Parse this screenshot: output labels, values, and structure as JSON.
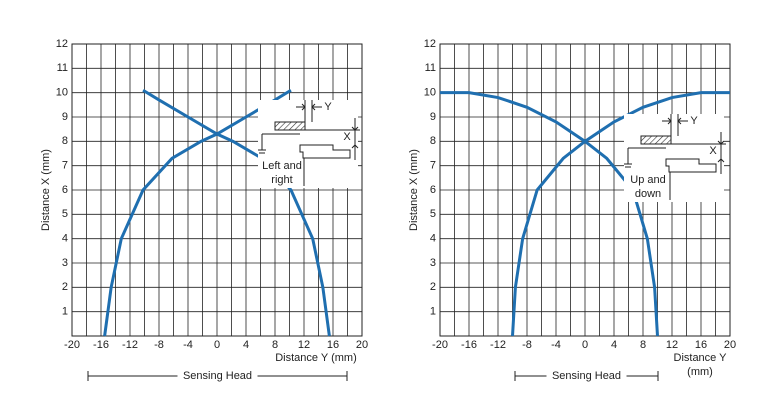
{
  "chart_data": [
    {
      "type": "line",
      "ylabel": "Distance X (mm)",
      "xlabel": [
        "Distance Y (mm)"
      ],
      "xlim": [
        -20,
        20
      ],
      "xticks": [
        -20,
        -16,
        -12,
        -8,
        -4,
        0,
        4,
        8,
        12,
        16,
        20
      ],
      "xgrid": [
        -18,
        -14,
        -10,
        -6,
        -2,
        2,
        6,
        10,
        14,
        18
      ],
      "ylim": [
        0,
        12
      ],
      "yticks": [
        1,
        2,
        3,
        4,
        5,
        6,
        7,
        8,
        9,
        10,
        11,
        12
      ],
      "grid": true,
      "series": [
        {
          "color": "#1f6fb0",
          "x": [
            -15.5,
            -14.6,
            -13.2,
            -10.2,
            -6.2,
            -2.2,
            0,
            4,
            8,
            10.2
          ],
          "values": [
            0,
            2,
            4,
            6,
            7.3,
            8,
            8.3,
            9,
            9.7,
            10.1
          ]
        },
        {
          "color": "#1f6fb0",
          "x": [
            -10.2,
            -8,
            -4,
            0,
            2.2,
            6.2,
            10.2,
            13.2,
            14.6,
            15.5
          ],
          "values": [
            10.1,
            9.7,
            9,
            8.3,
            8,
            7.3,
            6,
            4,
            2,
            0
          ]
        }
      ],
      "annotation": [
        "Left and",
        "right"
      ],
      "x_marker": "X",
      "y_marker": "Y",
      "footer": "Sensing Head"
    },
    {
      "type": "line",
      "ylabel": "Distance X (mm)",
      "xlabel": [
        "Distance Y",
        "(mm)"
      ],
      "xlim": [
        -20,
        20
      ],
      "xticks": [
        -20,
        -16,
        -12,
        -8,
        -4,
        0,
        4,
        8,
        12,
        16,
        20
      ],
      "xgrid": [
        -18,
        -14,
        -10,
        -6,
        -2,
        2,
        6,
        10,
        14,
        18
      ],
      "ylim": [
        0,
        12
      ],
      "yticks": [
        1,
        2,
        3,
        4,
        5,
        6,
        7,
        8,
        9,
        10,
        11,
        12
      ],
      "grid": true,
      "series": [
        {
          "color": "#1f6fb0",
          "x": [
            -10,
            -9.6,
            -8.6,
            -6.6,
            -3,
            0,
            4,
            8,
            12,
            16,
            20
          ],
          "values": [
            0,
            2,
            4,
            6,
            7.3,
            8,
            8.8,
            9.4,
            9.8,
            10,
            10
          ]
        },
        {
          "color": "#1f6fb0",
          "x": [
            -20,
            -16,
            -12,
            -8,
            -4,
            0,
            3,
            6.6,
            8.6,
            9.6,
            10
          ],
          "values": [
            10,
            10,
            9.8,
            9.4,
            8.8,
            8,
            7.3,
            6,
            4,
            2,
            0
          ]
        }
      ],
      "annotation": [
        "Up and",
        "down"
      ],
      "x_marker": "X",
      "y_marker": "Y",
      "footer": "Sensing Head"
    }
  ]
}
